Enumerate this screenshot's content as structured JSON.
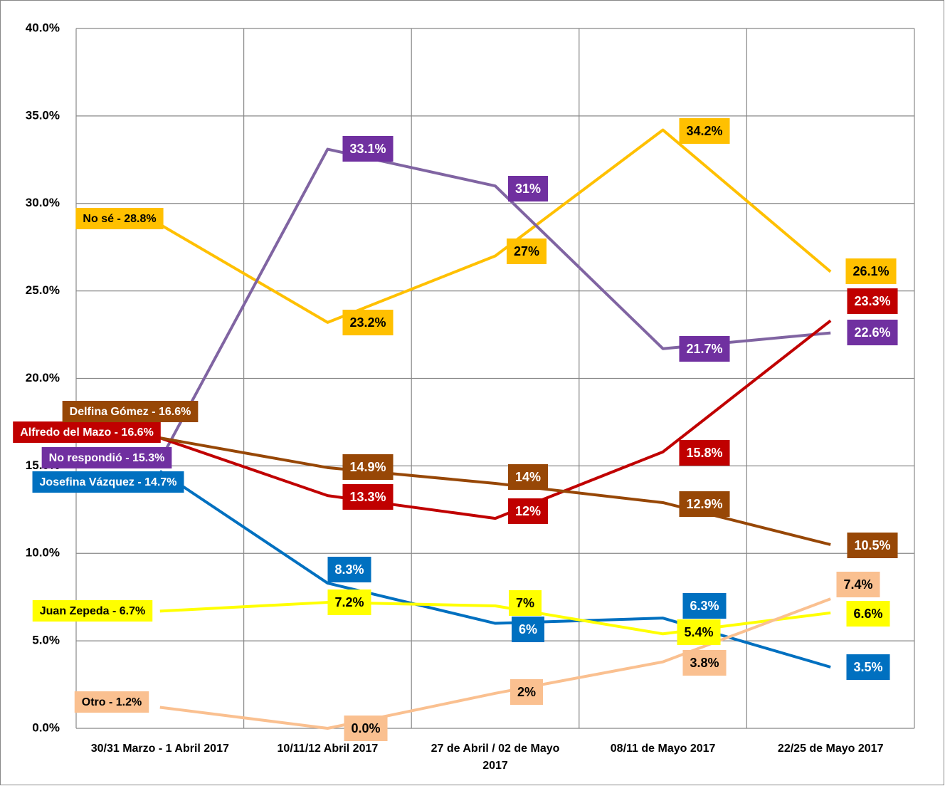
{
  "chart_data": {
    "type": "line",
    "categories": [
      "30/31 Marzo - 1 Abril 2017",
      "10/11/12 Abril 2017",
      "27 de Abril / 02 de Mayo 2017",
      "08/11 de Mayo 2017",
      "22/25  de Mayo 2017"
    ],
    "ylim": [
      0,
      40
    ],
    "yticks": [
      {
        "value": 0,
        "label": "0.0%"
      },
      {
        "value": 5,
        "label": "5.0%"
      },
      {
        "value": 10,
        "label": "10.0%"
      },
      {
        "value": 15,
        "label": "15.0%"
      },
      {
        "value": 20,
        "label": "20.0%"
      },
      {
        "value": 25,
        "label": "25.0%"
      },
      {
        "value": 30,
        "label": "30.0%"
      },
      {
        "value": 35,
        "label": "35.0%"
      },
      {
        "value": 40,
        "label": "40.0%"
      }
    ],
    "grid": true,
    "series": [
      {
        "color": "#FFC000",
        "text_color": "#000000",
        "values": [
          28.8,
          23.2,
          27,
          34.2,
          26.1
        ],
        "value_labels": [
          "No sé - 28.8%",
          "23.2%",
          "27%",
          "34.2%",
          "26.1%"
        ]
      },
      {
        "color": "#7030A0",
        "text_color": "#ffffff",
        "values": [
          15.3,
          33.1,
          31,
          21.7,
          22.6
        ],
        "value_labels": [
          "No respondió - 15.3%",
          "33.1%",
          "31%",
          "21.7%",
          "22.6%"
        ]
      },
      {
        "color": "#C00000",
        "text_color": "#ffffff",
        "values": [
          16.6,
          13.3,
          12,
          15.8,
          23.3
        ],
        "value_labels": [
          "Alfredo del Mazo - 16.6%",
          "13.3%",
          "12%",
          "15.8%",
          "23.3%"
        ]
      },
      {
        "color": "#974706",
        "text_color": "#ffffff",
        "values": [
          16.6,
          14.9,
          14,
          12.9,
          10.5
        ],
        "value_labels": [
          "Delfina Gómez - 16.6%",
          "14.9%",
          "14%",
          "12.9%",
          "10.5%"
        ]
      },
      {
        "color": "#0070C0",
        "text_color": "#ffffff",
        "values": [
          14.7,
          8.3,
          6,
          6.3,
          3.5
        ],
        "value_labels": [
          "Josefina Vázquez - 14.7%",
          "8.3%",
          "6%",
          "6.3%",
          "3.5%"
        ]
      },
      {
        "color": "#FFFF00",
        "text_color": "#000000",
        "values": [
          6.7,
          7.2,
          7,
          5.4,
          6.6
        ],
        "value_labels": [
          "Juan Zepeda - 6.7%",
          "7.2%",
          "7%",
          "5.4%",
          "6.6%"
        ]
      },
      {
        "color": "#FAC090",
        "text_color": "#000000",
        "values": [
          1.2,
          0.0,
          2,
          3.8,
          7.4
        ],
        "value_labels": [
          "Otro - 1.2%",
          "0.0%",
          "2%",
          "3.8%",
          "7.4%"
        ]
      }
    ]
  }
}
